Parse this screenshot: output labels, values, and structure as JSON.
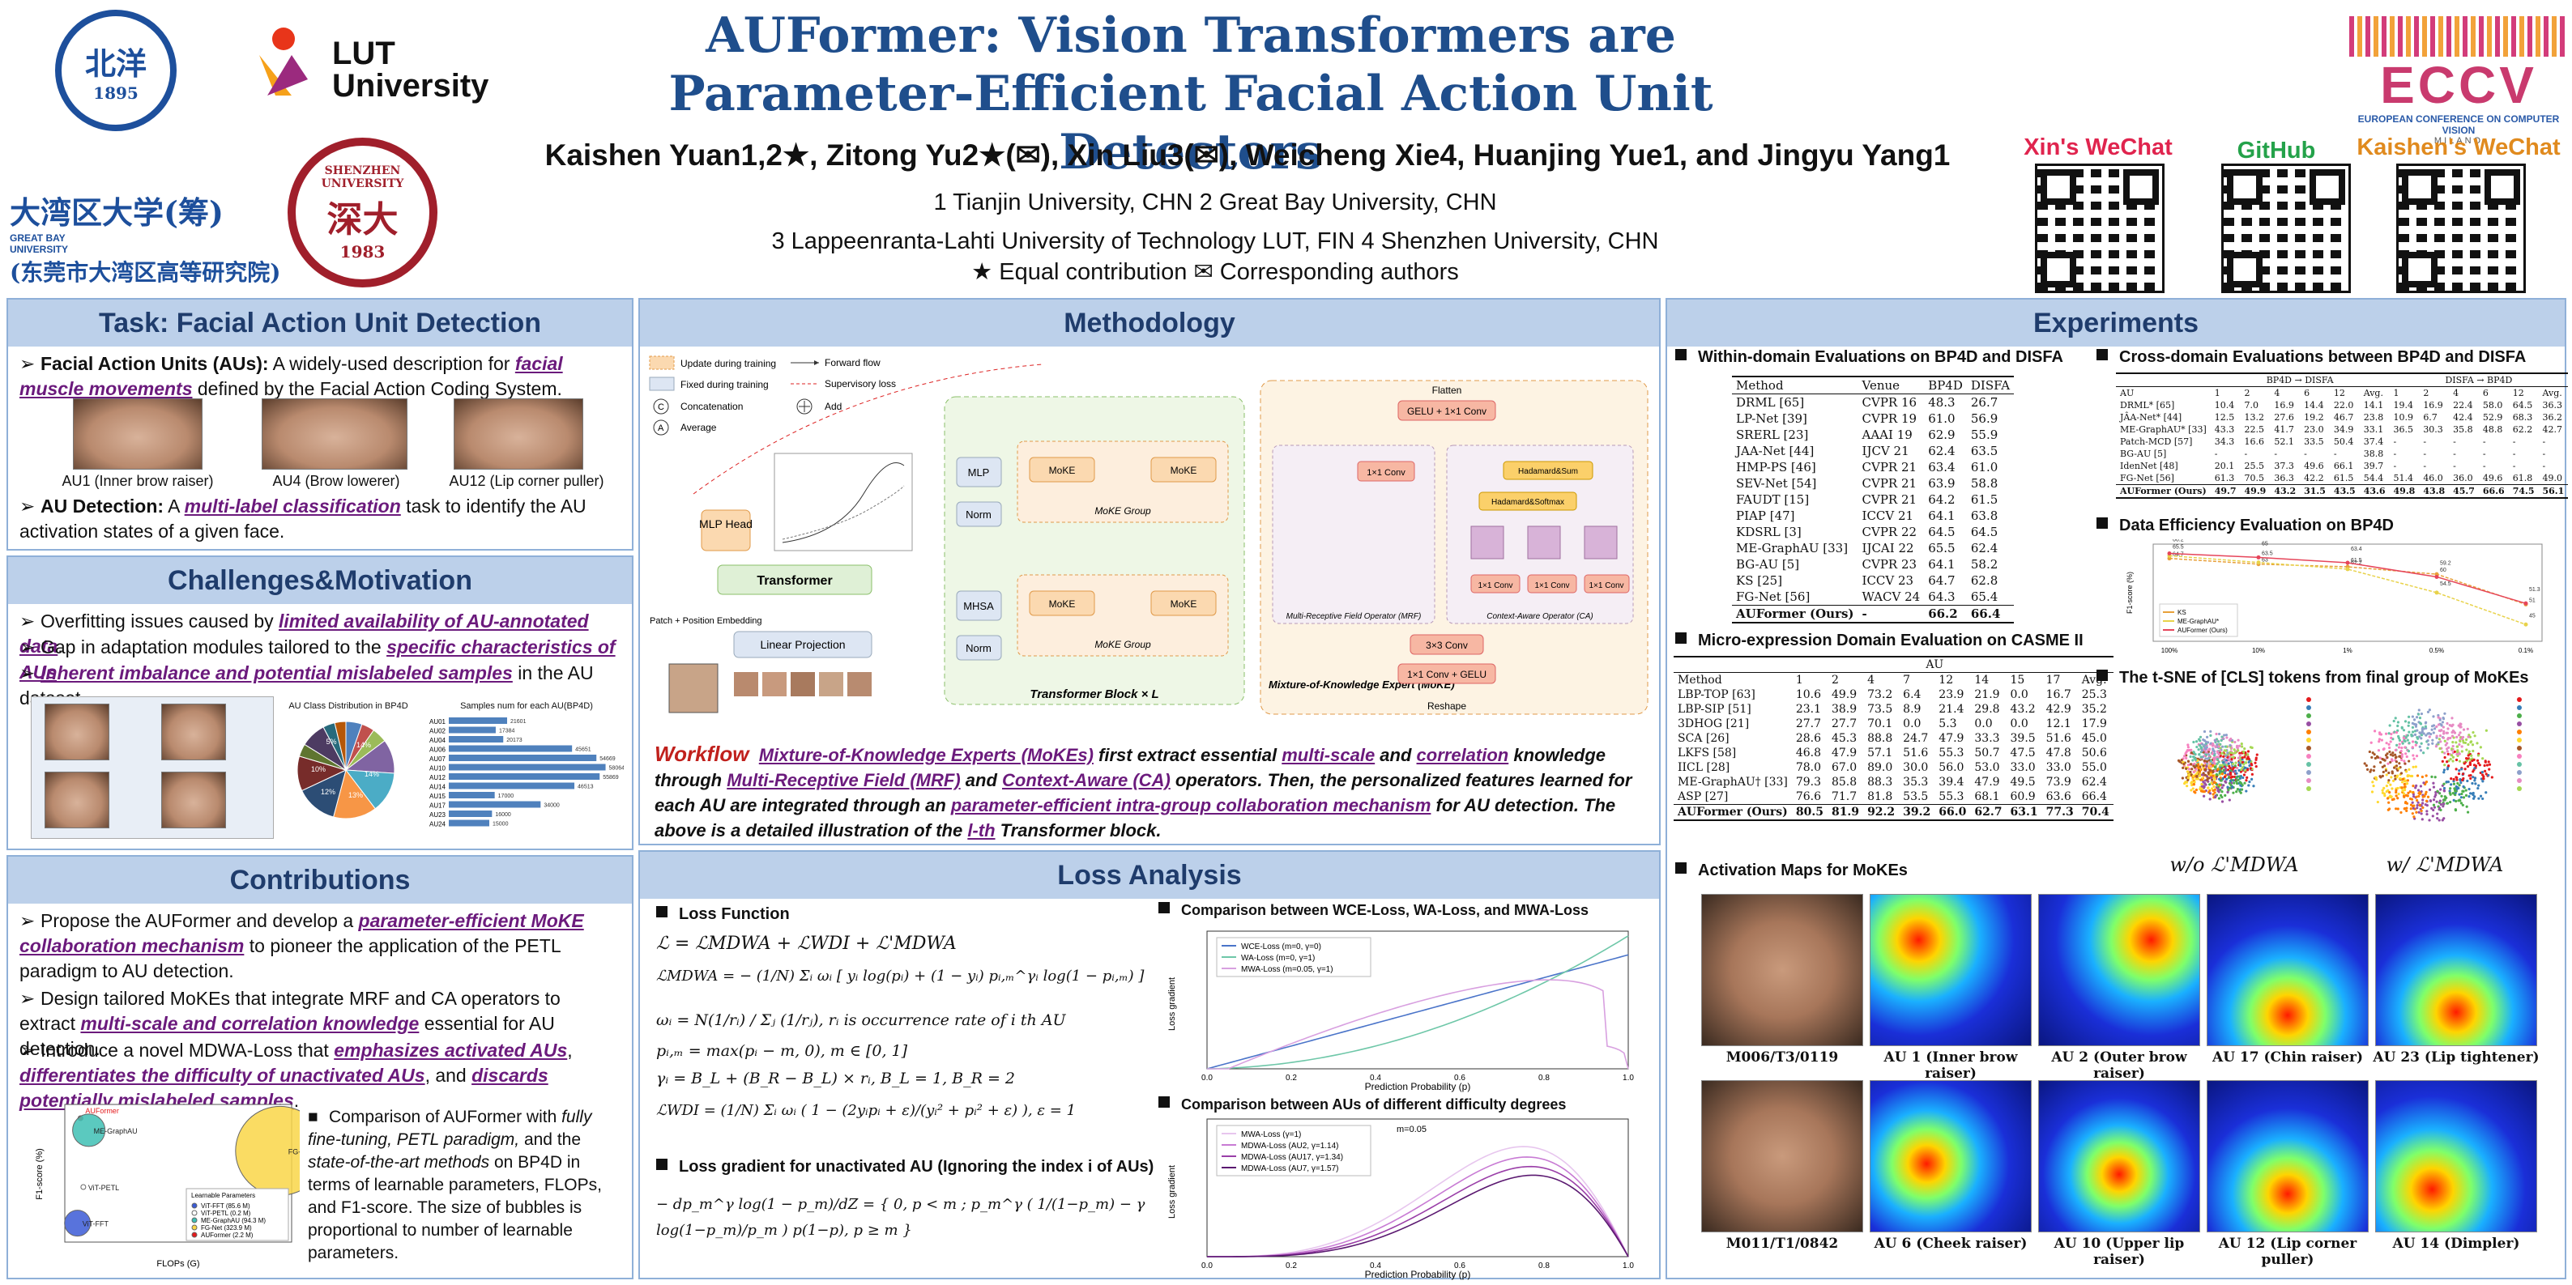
{
  "header": {
    "title_line1": "AUFormer: Vision Transformers are",
    "title_line2": "Parameter-Efficient Facial Action Unit Detectors",
    "authors": "Kaishen Yuan1,2★, Zitong Yu2★(✉), Xin Liu3(✉), Weicheng Xie4, Huanjing Yue1, and Jingyu Yang1",
    "aff1": "1 Tianjin University, CHN  2 Great Bay University, CHN",
    "aff2": "3 Lappeenranta-Lahti University of Technology LUT, FIN  4 Shenzhen University, CHN",
    "aff3": "★ Equal contribution    ✉ Corresponding authors",
    "logos": {
      "lut": "LUT University",
      "gbu_cn": "大湾区大学(筹)",
      "gbu_en": "GREAT BAY UNIVERSITY",
      "gbu_sub": "(东莞市大湾区高等研究院)",
      "szu": "SHENZHEN UNIVERSITY",
      "szu_year": "1983",
      "tju_year": "1895",
      "eccv": "ECCV",
      "eccv_sub": "EUROPEAN CONFERENCE ON COMPUTER VISION",
      "eccv_city": "MILANO"
    },
    "qr": [
      {
        "label": "Xin's WeChat",
        "color": "#e0244e"
      },
      {
        "label": "GitHub",
        "color": "#24a24a"
      },
      {
        "label": "Kaishen's WeChat",
        "color": "#e08a1e"
      }
    ]
  },
  "task": {
    "title": "Task: Facial Action Unit Detection",
    "b1_a": "Facial Action Units (AUs):",
    "b1_b": " A widely-used description for ",
    "b1_c": "facial muscle movements",
    "b1_d": " defined by the Facial Action Coding System.",
    "faces": [
      "AU1 (Inner brow raiser)",
      "AU4 (Brow lowerer)",
      "AU12 (Lip corner puller)"
    ],
    "b2_a": "AU Detection:",
    "b2_b": " A ",
    "b2_c": "multi-label classification",
    "b2_d": " task to identify the AU activation states of a given face."
  },
  "challenges": {
    "title": "Challenges&Motivation",
    "b1_a": "Overfitting issues caused by ",
    "b1_b": "limited availability of AU-annotated data",
    "b2_a": "Gap in adaptation modules tailored to the ",
    "b2_b": "specific characteristics of AUs",
    "b3_a": "Inherent imbalance and potential mislabeled samples",
    "b3_b": " in the AU dataset.",
    "pie_title": "AU Class Distribution in BP4D",
    "bar_title": "Samples num for each AU(BP4D)",
    "au_bars": [
      {
        "label": "AU01",
        "v": 21601
      },
      {
        "label": "AU02",
        "v": 17384
      },
      {
        "label": "AU04",
        "v": 20173
      },
      {
        "label": "AU06",
        "v": 45651
      },
      {
        "label": "AU07",
        "v": 54669
      },
      {
        "label": "AU10",
        "v": 58064
      },
      {
        "label": "AU12",
        "v": 55869
      },
      {
        "label": "AU14",
        "v": 46513
      },
      {
        "label": "AU15",
        "v": 17000
      },
      {
        "label": "AU17",
        "v": 34000
      },
      {
        "label": "AU23",
        "v": 16000
      },
      {
        "label": "AU24",
        "v": 15000
      }
    ],
    "pie_pcts": [
      "14%",
      "14%",
      "13%",
      "12%",
      "10%",
      "5%"
    ]
  },
  "contrib": {
    "title": "Contributions",
    "b1_a": "Propose the AUFormer and develop a ",
    "b1_b": "parameter-efficient MoKE collaboration mechanism",
    "b1_c": " to pioneer the application of the PETL paradigm to AU detection.",
    "b2_a": "Design tailored MoKEs that integrate MRF and CA operators to extract ",
    "b2_b": "multi-scale and correlation knowledge",
    "b2_c": " essential for AU detection.",
    "b3_a": "Introduce a novel MDWA-Loss that ",
    "b3_b": "emphasizes activated AUs",
    "b3_c": ", ",
    "b3_d": "differentiates the difficulty of unactivated AUs",
    "b3_e": ", and ",
    "b3_f": "discards potentially mislabeled samples",
    "side_a": "Comparison of AUFormer with ",
    "side_b": "fully fine-tuning, PETL paradigm,",
    "side_c": " and the ",
    "side_d": "state-of-the-art methods",
    "side_e": " on BP4D in terms of learnable parameters, FLOPs, and F1-score. The size of bubbles is proportional to number of learnable parameters.",
    "bubble_xlabel": "FLOPs (G)",
    "bubble_ylabel": "F1-score (%)",
    "bubbles": [
      {
        "name": "AUFormer",
        "x": 17.5,
        "y": 66.2
      },
      {
        "name": "ME-GraphAU",
        "x": 19,
        "y": 65.5
      },
      {
        "name": "FG-Net",
        "x": 125,
        "y": 64.3
      },
      {
        "name": "ViT-PETL",
        "x": 18,
        "y": 62.2
      },
      {
        "name": "ViT-FFT",
        "x": 17,
        "y": 60.1
      }
    ],
    "bubble_legend": [
      "ViT-FFT (85.6 M)",
      "ViT-PETL (0.2 M)",
      "ME-GraphAU (94.3 M)",
      "FG-Net (323.9 M)",
      "AUFormer (2.2 M)"
    ],
    "bubble_legend_title": "Learnable Parameters"
  },
  "method": {
    "title": "Methodology",
    "legend": [
      "Update during training",
      "Fixed during training",
      "Concatenation",
      "Average",
      "Forward flow",
      "Supervisory loss",
      "Add"
    ],
    "blocks": {
      "mlp": "MLP",
      "norm": "Norm",
      "mhsa": "MHSA",
      "mlp_head": "MLP Head",
      "transformer": "Transformer",
      "linear": "Linear Projection",
      "patch": "Patch + Position Embedding",
      "block": "Transformer Block × L",
      "moke": "Mixture-of-Knowledge Expert (MoKE)",
      "moke_group": "MoKE Group",
      "flatten": "Flatten",
      "gelu": "GELU + 1×1 Conv",
      "mrf": "Multi-Receptive Field Operator (MRF)",
      "ca": "Context-Aware Operator (CA)",
      "reshape": "Reshape",
      "conv33": "3×3 Conv",
      "conv11g": "1×1 Conv + GELU",
      "conv11": "1×1 Conv",
      "hadamard": "Hadamard&Softmax",
      "hadsum": "Hadamard&Sum"
    },
    "workflow": "Workflow",
    "w1": "Mixture-of-Knowledge Experts (MoKEs)",
    "w2": " first extract essential ",
    "w3": "multi-scale",
    "w4": " and ",
    "w5": "correlation",
    "w6": " knowledge through ",
    "w7": "Multi-Receptive Field (MRF)",
    "w8": " and ",
    "w9": "Context-Aware (CA)",
    "w10": " operators. Then, the personalized features learned for each AU are integrated through an ",
    "w11": "parameter-efficient intra-group collaboration mechanism",
    "w12": " for AU detection. The above is a detailed illustration of the ",
    "w13": "l-th",
    "w14": " Transformer block."
  },
  "loss": {
    "title": "Loss Analysis",
    "s1": "Loss Function",
    "s2": "Loss gradient for unactivated AU (Ignoring the index i of AUs)",
    "s3": "Comparison between WCE-Loss, WA-Loss, and MWA-Loss",
    "s4": "Comparison between AUs of different difficulty degrees",
    "eq1": "ℒ = ℒMDWA + ℒWDI + ℒ'MDWA",
    "eq2": "ℒMDWA = − (1/N) Σᵢ ωᵢ [ yᵢ log(pᵢ) + (1 − yᵢ) pᵢ,ₘ^γᵢ log(1 − pᵢ,ₘ) ]",
    "eq3": "ωᵢ = N(1/rᵢ) / Σⱼ (1/rⱼ),  rᵢ is occurrence rate of i th AU",
    "eq4": "pᵢ,ₘ = max(pᵢ − m, 0),  m ∈ [0, 1]",
    "eq5": "γᵢ = B_L + (B_R − B_L) × rᵢ,  B_L = 1,  B_R = 2",
    "eq6": "ℒWDI = (1/N) Σᵢ ωᵢ ( 1 − (2yᵢpᵢ + ε)/(yᵢ² + pᵢ² + ε) ),  ε = 1",
    "eq7": "− dp_m^γ log(1 − p_m)/dZ = { 0,  p < m ;  p_m^γ ( 1/(1−p_m) − γ log(1−p_m)/p_m ) p(1−p),  p ≥ m }",
    "chart1_legend": [
      "WCE-Loss (m=0, γ=0)",
      "WA-Loss (m=0, γ=1)",
      "MWA-Loss (m=0.05, γ=1)"
    ],
    "chart2_legend": [
      "MWA-Loss (γ=1)",
      "MDWA-Loss (AU2, γ=1.14)",
      "MDWA-Loss (AU17, γ=1.34)",
      "MDWA-Loss (AU7, γ=1.57)"
    ],
    "chart2_note": "m=0.05",
    "xlabel": "Prediction Probability (p)",
    "ylabel": "Loss gradient",
    "xticks": [
      "0.0",
      "0.2",
      "0.4",
      "0.6",
      "0.8",
      "1.0"
    ]
  },
  "exp": {
    "title": "Experiments",
    "s1": "Within-domain Evaluations on BP4D and DISFA",
    "s2": "Cross-domain Evaluations between BP4D and DISFA",
    "s3": "Data Efficiency Evaluation on BP4D",
    "s4": "Micro-expression Domain Evaluation on CASME II",
    "s5": "The t-SNE of [CLS] tokens from final group of MoKEs",
    "s6": "Activation Maps for MoKEs",
    "tsne_l": "w/o ℒ'MDWA",
    "tsne_r": "w/ ℒ'MDWA",
    "within_head": [
      "Method",
      "Venue",
      "BP4D",
      "DISFA"
    ],
    "within": [
      [
        "DRML [65]",
        "CVPR 16",
        "48.3",
        "26.7"
      ],
      [
        "LP-Net [39]",
        "CVPR 19",
        "61.0",
        "56.9"
      ],
      [
        "SRERL [23]",
        "AAAI 19",
        "62.9",
        "55.9"
      ],
      [
        "JAA-Net [44]",
        "IJCV 21",
        "62.4",
        "63.5"
      ],
      [
        "HMP-PS [46]",
        "CVPR 21",
        "63.4",
        "61.0"
      ],
      [
        "SEV-Net [54]",
        "CVPR 21",
        "63.9",
        "58.8"
      ],
      [
        "FAUDT [15]",
        "CVPR 21",
        "64.2",
        "61.5"
      ],
      [
        "PIAP [47]",
        "ICCV 21",
        "64.1",
        "63.8"
      ],
      [
        "KDSRL [3]",
        "CVPR 22",
        "64.5",
        "64.5"
      ],
      [
        "ME-GraphAU [33]",
        "IJCAI 22",
        "65.5",
        "62.4"
      ],
      [
        "BG-AU [5]",
        "CVPR 23",
        "64.1",
        "58.2"
      ],
      [
        "KS [25]",
        "ICCV 23",
        "64.7",
        "62.8"
      ],
      [
        "FG-Net [56]",
        "WACV 24",
        "64.3",
        "65.4"
      ]
    ],
    "within_ours": [
      "AUFormer (Ours)",
      "-",
      "66.2",
      "66.4"
    ],
    "micro_head": [
      "Method",
      "1",
      "2",
      "4",
      "7",
      "12",
      "14",
      "15",
      "17",
      "Avg."
    ],
    "micro_au": "AU",
    "micro": [
      [
        "LBP-TOP [63]",
        "10.6",
        "49.9",
        "73.2",
        "6.4",
        "23.9",
        "21.9",
        "0.0",
        "16.7",
        "25.3"
      ],
      [
        "LBP-SIP [51]",
        "23.1",
        "38.9",
        "73.5",
        "8.9",
        "21.4",
        "29.8",
        "43.2",
        "42.9",
        "35.2"
      ],
      [
        "3DHOG [21]",
        "27.7",
        "27.7",
        "70.1",
        "0.0",
        "5.3",
        "0.0",
        "0.0",
        "12.1",
        "17.9"
      ],
      [
        "SCA [26]",
        "28.6",
        "45.3",
        "88.8",
        "24.7",
        "47.9",
        "33.3",
        "39.5",
        "51.6",
        "45.0"
      ],
      [
        "LKFS [58]",
        "46.8",
        "47.9",
        "57.1",
        "51.6",
        "55.3",
        "50.7",
        "47.5",
        "47.8",
        "50.6"
      ],
      [
        "IICL [28]",
        "78.0",
        "67.0",
        "89.0",
        "30.0",
        "56.0",
        "53.0",
        "33.0",
        "33.0",
        "55.0"
      ],
      [
        "ME-GraphAU† [33]",
        "79.3",
        "85.8",
        "88.3",
        "35.3",
        "39.4",
        "47.9",
        "49.5",
        "73.9",
        "62.4"
      ],
      [
        "ASP [27]",
        "76.6",
        "71.7",
        "81.8",
        "53.5",
        "55.3",
        "68.1",
        "60.9",
        "63.6",
        "66.4"
      ]
    ],
    "micro_ours": [
      "AUFormer (Ours)",
      "80.5",
      "81.9",
      "92.2",
      "39.2",
      "66.0",
      "62.7",
      "63.1",
      "77.3",
      "70.4"
    ],
    "cross_dir1": "BP4D → DISFA",
    "cross_dir2": "DISFA → BP4D",
    "cross_head": [
      "AU",
      "1",
      "2",
      "4",
      "6",
      "12",
      "Avg.",
      "1",
      "2",
      "4",
      "6",
      "12",
      "Avg."
    ],
    "cross": [
      [
        "DRML* [65]",
        "10.4",
        "7.0",
        "16.9",
        "14.4",
        "22.0",
        "14.1",
        "19.4",
        "16.9",
        "22.4",
        "58.0",
        "64.5",
        "36.3"
      ],
      [
        "JÂA-Net* [44]",
        "12.5",
        "13.2",
        "27.6",
        "19.2",
        "46.7",
        "23.8",
        "10.9",
        "6.7",
        "42.4",
        "52.9",
        "68.3",
        "36.2"
      ],
      [
        "ME-GraphAU* [33]",
        "43.3",
        "22.5",
        "41.7",
        "23.0",
        "34.9",
        "33.1",
        "36.5",
        "30.3",
        "35.8",
        "48.8",
        "62.2",
        "42.7"
      ],
      [
        "Patch-MCD [57]",
        "34.3",
        "16.6",
        "52.1",
        "33.5",
        "50.4",
        "37.4",
        "-",
        "-",
        "-",
        "-",
        "-",
        "-"
      ],
      [
        "BG-AU [5]",
        "-",
        "-",
        "-",
        "-",
        "-",
        "38.8",
        "-",
        "-",
        "-",
        "-",
        "-",
        "-"
      ],
      [
        "IdenNet [48]",
        "20.1",
        "25.5",
        "37.3",
        "49.6",
        "66.1",
        "39.7",
        "-",
        "-",
        "-",
        "-",
        "-",
        "-"
      ],
      [
        "FG-Net [56]",
        "61.3",
        "70.5",
        "36.3",
        "42.2",
        "61.5",
        "54.4",
        "51.4",
        "46.0",
        "36.0",
        "49.6",
        "61.8",
        "49.0"
      ]
    ],
    "cross_ours": [
      "AUFormer (Ours)",
      "49.7",
      "49.9",
      "43.2",
      "31.5",
      "43.5",
      "43.6",
      "49.8",
      "43.8",
      "45.7",
      "66.6",
      "74.5",
      "56.1"
    ],
    "eff_legend": [
      "KS",
      "ME-GraphAU*",
      "AUFormer (Ours)"
    ],
    "eff_xlabel": [
      "100%",
      "10%",
      "1%",
      "0.5%",
      "0.1%"
    ],
    "eff_ylabel": "F1-score (%)",
    "act_row1": [
      "M006/T3/0119",
      "AU 1 (Inner brow raiser)",
      "AU 2 (Outer brow raiser)",
      "AU 17 (Chin raiser)",
      "AU 23 (Lip tightener)"
    ],
    "act_row2": [
      "M011/T1/0842",
      "AU 6 (Cheek raiser)",
      "AU 10 (Upper lip raiser)",
      "AU 12 (Lip corner puller)",
      "AU 14 (Dimpler)"
    ]
  },
  "chart_data": [
    {
      "type": "line",
      "title": "Data Efficiency Evaluation on BP4D",
      "x": [
        "100%",
        "10%",
        "1%",
        "0.5%",
        "0.1%"
      ],
      "ylabel": "F1-score (%)",
      "ylim": [
        40,
        68
      ],
      "series": [
        {
          "name": "KS",
          "values": [
            64.7,
            63.0,
            62.2,
            60.0,
            51.0
          ]
        },
        {
          "name": "ME-GraphAU*",
          "values": [
            65.5,
            63.5,
            61.5,
            54.5,
            45.0
          ]
        },
        {
          "name": "AUFormer (Ours)",
          "values": [
            66.2,
            65.0,
            63.4,
            59.2,
            51.3
          ]
        }
      ]
    },
    {
      "type": "line",
      "title": "Comparison between WCE-Loss, WA-Loss, and MWA-Loss",
      "xlabel": "Prediction Probability (p)",
      "ylabel": "Loss gradient",
      "xlim": [
        0,
        1
      ],
      "series": [
        {
          "name": "WCE-Loss (m=0, γ=0)"
        },
        {
          "name": "WA-Loss (m=0, γ=1)"
        },
        {
          "name": "MWA-Loss (m=0.05, γ=1)"
        }
      ]
    },
    {
      "type": "line",
      "title": "Comparison between AUs of different difficulty degrees",
      "xlabel": "Prediction Probability (p)",
      "ylabel": "Loss gradient",
      "xlim": [
        0,
        1
      ],
      "series": [
        {
          "name": "MWA-Loss (γ=1)"
        },
        {
          "name": "MDWA-Loss (AU2, γ=1.14)"
        },
        {
          "name": "MDWA-Loss (AU17, γ=1.34)"
        },
        {
          "name": "MDWA-Loss (AU7, γ=1.57)"
        }
      ]
    }
  ]
}
